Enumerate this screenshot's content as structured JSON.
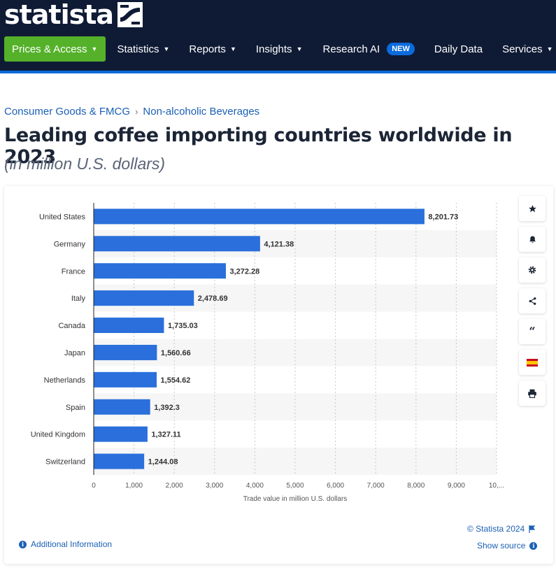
{
  "brand": {
    "name": "statista"
  },
  "nav": {
    "prices": "Prices & Access",
    "items": [
      {
        "label": "Statistics"
      },
      {
        "label": "Reports"
      },
      {
        "label": "Insights"
      },
      {
        "label": "Research AI",
        "badge": "NEW"
      },
      {
        "label": "Daily Data"
      },
      {
        "label": "Services"
      }
    ]
  },
  "breadcrumb": [
    "Consumer Goods & FMCG",
    "Non-alcoholic Beverages"
  ],
  "page": {
    "title": "Leading coffee importing countries worldwide in 2023",
    "subtitle": "(in million U.S. dollars)"
  },
  "chart_data": {
    "type": "bar",
    "orientation": "horizontal",
    "categories": [
      "United States",
      "Germany",
      "France",
      "Italy",
      "Canada",
      "Japan",
      "Netherlands",
      "Spain",
      "United Kingdom",
      "Switzerland"
    ],
    "values": [
      8201.73,
      4121.38,
      3272.28,
      2478.69,
      1735.03,
      1560.66,
      1554.62,
      1392.3,
      1327.11,
      1244.08
    ],
    "data_labels": [
      "8,201.73",
      "4,121.38",
      "3,272.28",
      "2,478.69",
      "1,735.03",
      "1,560.66",
      "1,554.62",
      "1,392.3",
      "1,327.11",
      "1,244.08"
    ],
    "xlabel": "Trade value in million U.S. dollars",
    "xlim": [
      0,
      10000
    ],
    "x_ticks": [
      "0",
      "1,000",
      "2,000",
      "3,000",
      "4,000",
      "5,000",
      "6,000",
      "7,000",
      "8,000",
      "9,000",
      "10,..."
    ],
    "bar_color": "#2a6fdb",
    "grid": "vertical dashed",
    "legend": "none"
  },
  "footer": {
    "copyright": "© Statista 2024",
    "show_source": "Show source",
    "additional_info": "Additional Information"
  },
  "colors": {
    "header_bg": "#0f1b35",
    "accent_blue": "#0b6bdc",
    "prices_green": "#55b12a",
    "link_blue": "#1b60b5"
  },
  "tools": [
    "star-icon",
    "bell-icon",
    "gear-icon",
    "share-icon",
    "quote-icon",
    "spain-flag-icon",
    "print-icon"
  ]
}
